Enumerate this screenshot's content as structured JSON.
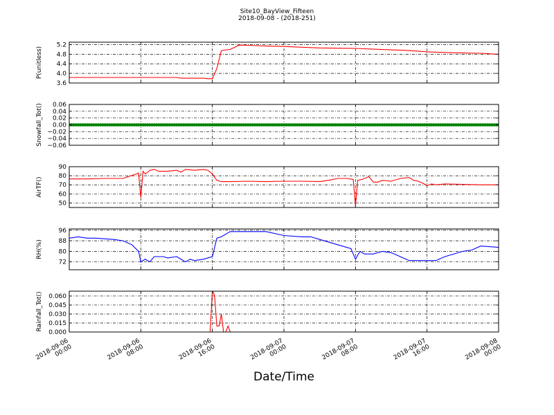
{
  "figure": {
    "title_line1": "Site10_BayView_Fifteen",
    "title_line2": "2018-09-08 - (2018-251)",
    "xlabel": "Date/Time"
  },
  "chart_data": [
    {
      "type": "line",
      "ylabel": "P(unitless)",
      "ylim": [
        3.6,
        5.3
      ],
      "yticks": [
        3.6,
        4.0,
        4.4,
        4.8,
        5.2
      ],
      "ytick_labels": [
        "3.6",
        "4.0",
        "4.4",
        "4.8",
        "5.2"
      ],
      "grid": true,
      "series": [
        {
          "color": "#ff0000",
          "x": [
            "2018-09-06 00:00",
            "2018-09-06 06:00",
            "2018-09-06 12:00",
            "2018-09-06 12:30",
            "2018-09-06 13:00",
            "2018-09-06 15:00",
            "2018-09-06 15:30",
            "2018-09-06 16:00",
            "2018-09-06 16:30",
            "2018-09-06 17:00",
            "2018-09-06 18:00",
            "2018-09-06 19:00",
            "2018-09-06 20:00",
            "2018-09-06 22:00",
            "2018-09-07 00:00",
            "2018-09-07 02:00",
            "2018-09-07 04:00",
            "2018-09-07 06:00",
            "2018-09-07 08:00",
            "2018-09-07 10:00",
            "2018-09-07 12:00",
            "2018-09-07 14:00",
            "2018-09-07 16:00",
            "2018-09-07 18:00",
            "2018-09-07 20:00",
            "2018-09-07 22:00",
            "2018-09-08 00:00"
          ],
          "y": [
            3.83,
            3.83,
            3.83,
            3.8,
            3.8,
            3.8,
            3.78,
            3.78,
            4.2,
            4.95,
            5.0,
            5.18,
            5.17,
            5.14,
            5.12,
            5.09,
            5.06,
            5.05,
            5.04,
            5.01,
            4.98,
            4.95,
            4.9,
            4.87,
            4.85,
            4.84,
            4.8
          ]
        }
      ]
    },
    {
      "type": "scatter",
      "ylabel": "Snowfall_Tot()",
      "ylim": [
        -0.06,
        0.06
      ],
      "yticks": [
        -0.06,
        -0.04,
        -0.02,
        0.0,
        0.02,
        0.04,
        0.06
      ],
      "ytick_labels": [
        "−0.06",
        "−0.04",
        "−0.02",
        "0.00",
        "0.02",
        "0.04",
        "0.06"
      ],
      "grid": true,
      "series": [
        {
          "color": "#008000",
          "x_range": [
            "2018-09-06 00:00",
            "2018-09-08 00:00"
          ],
          "interval_minutes": 15,
          "constant_value": 0.0
        }
      ]
    },
    {
      "type": "line",
      "ylabel": "AirTF()",
      "ylim": [
        45,
        90
      ],
      "yticks": [
        50,
        60,
        70,
        80,
        90
      ],
      "ytick_labels": [
        "50",
        "60",
        "70",
        "80",
        "90"
      ],
      "grid": true,
      "series": [
        {
          "color": "#ff0000",
          "x": [
            "2018-09-06 00:00",
            "2018-09-06 02:00",
            "2018-09-06 04:00",
            "2018-09-06 06:00",
            "2018-09-06 07:30",
            "2018-09-06 07:45",
            "2018-09-06 08:00",
            "2018-09-06 08:15",
            "2018-09-06 08:30",
            "2018-09-06 09:00",
            "2018-09-06 09:30",
            "2018-09-06 10:00",
            "2018-09-06 11:00",
            "2018-09-06 12:00",
            "2018-09-06 12:30",
            "2018-09-06 13:00",
            "2018-09-06 14:00",
            "2018-09-06 15:00",
            "2018-09-06 15:30",
            "2018-09-06 16:00",
            "2018-09-06 16:30",
            "2018-09-06 17:00",
            "2018-09-06 18:00",
            "2018-09-06 20:00",
            "2018-09-06 22:00",
            "2018-09-07 00:00",
            "2018-09-07 02:00",
            "2018-09-07 04:00",
            "2018-09-07 05:00",
            "2018-09-07 06:00",
            "2018-09-07 07:00",
            "2018-09-07 07:45",
            "2018-09-07 08:00",
            "2018-09-07 08:15",
            "2018-09-07 08:45",
            "2018-09-07 09:30",
            "2018-09-07 10:00",
            "2018-09-07 10:30",
            "2018-09-07 11:00",
            "2018-09-07 12:00",
            "2018-09-07 13:00",
            "2018-09-07 14:00",
            "2018-09-07 14:30",
            "2018-09-07 15:00",
            "2018-09-07 15:30",
            "2018-09-07 16:00",
            "2018-09-07 16:30",
            "2018-09-07 17:00",
            "2018-09-07 18:00",
            "2018-09-07 20:00",
            "2018-09-07 22:00",
            "2018-09-08 00:00"
          ],
          "y": [
            76.5,
            76.5,
            77,
            77,
            82,
            83,
            56,
            85,
            82,
            86,
            87,
            85,
            85,
            86,
            84,
            87,
            86,
            87,
            86,
            82,
            75,
            73.5,
            73.5,
            74,
            73.5,
            74,
            74,
            73.5,
            75,
            77,
            77,
            76,
            47,
            75,
            76,
            79,
            73,
            73,
            75,
            74,
            77,
            78,
            75,
            74,
            72,
            69,
            71,
            70,
            71,
            70.5,
            70,
            70
          ]
        }
      ]
    },
    {
      "type": "line",
      "ylabel": "RH(%)",
      "ylim": [
        66,
        97
      ],
      "yticks": [
        72,
        80,
        88,
        96
      ],
      "ytick_labels": [
        "72",
        "80",
        "88",
        "96"
      ],
      "grid": true,
      "series": [
        {
          "color": "#0000ff",
          "x": [
            "2018-09-06 00:00",
            "2018-09-06 01:00",
            "2018-09-06 02:00",
            "2018-09-06 03:00",
            "2018-09-06 04:00",
            "2018-09-06 05:00",
            "2018-09-06 06:00",
            "2018-09-06 07:00",
            "2018-09-06 07:45",
            "2018-09-06 08:00",
            "2018-09-06 08:30",
            "2018-09-06 09:00",
            "2018-09-06 09:30",
            "2018-09-06 10:00",
            "2018-09-06 10:30",
            "2018-09-06 11:00",
            "2018-09-06 12:00",
            "2018-09-06 13:00",
            "2018-09-06 13:30",
            "2018-09-06 14:00",
            "2018-09-06 15:00",
            "2018-09-06 16:00",
            "2018-09-06 16:30",
            "2018-09-06 17:00",
            "2018-09-06 18:00",
            "2018-09-06 20:00",
            "2018-09-06 22:00",
            "2018-09-07 00:00",
            "2018-09-07 02:00",
            "2018-09-07 03:00",
            "2018-09-07 04:00",
            "2018-09-07 06:00",
            "2018-09-07 07:30",
            "2018-09-07 08:00",
            "2018-09-07 08:30",
            "2018-09-07 09:00",
            "2018-09-07 10:00",
            "2018-09-07 11:00",
            "2018-09-07 12:00",
            "2018-09-07 13:00",
            "2018-09-07 14:00",
            "2018-09-07 15:00",
            "2018-09-07 16:00",
            "2018-09-07 17:00",
            "2018-09-07 18:00",
            "2018-09-07 20:00",
            "2018-09-07 21:00",
            "2018-09-07 22:00",
            "2018-09-08 00:00"
          ],
          "y": [
            90,
            91,
            90,
            90,
            89.5,
            89,
            88,
            85,
            80,
            72,
            74,
            72,
            76,
            76,
            76,
            75,
            76,
            72,
            74,
            73,
            74,
            76,
            90,
            91,
            95,
            95,
            95,
            92,
            91,
            91,
            89,
            85,
            82,
            74,
            80,
            78,
            78,
            80,
            79,
            76,
            73,
            73,
            73,
            73,
            76,
            80,
            81,
            84,
            83
          ]
        }
      ]
    },
    {
      "type": "line",
      "ylabel": "Rainfall_Tot()",
      "ylim": [
        0,
        0.068
      ],
      "yticks": [
        0.0,
        0.015,
        0.03,
        0.045,
        0.06
      ],
      "ytick_labels": [
        "0.000",
        "0.015",
        "0.030",
        "0.045",
        "0.060"
      ],
      "grid": true,
      "xtick_labels": [
        [
          "2018-09-06",
          "00:00"
        ],
        [
          "2018-09-06",
          "08:00"
        ],
        [
          "2018-09-06",
          "16:00"
        ],
        [
          "2018-09-07",
          "00:00"
        ],
        [
          "2018-09-07",
          "08:00"
        ],
        [
          "2018-09-07",
          "16:00"
        ],
        [
          "2018-09-08",
          "00:00"
        ]
      ],
      "series": [
        {
          "color": "#ff0000",
          "x": [
            "2018-09-06 00:00",
            "2018-09-06 15:45",
            "2018-09-06 16:00",
            "2018-09-06 16:15",
            "2018-09-06 16:30",
            "2018-09-06 16:45",
            "2018-09-06 17:00",
            "2018-09-06 17:15",
            "2018-09-06 17:30",
            "2018-09-06 17:45",
            "2018-09-06 18:00",
            "2018-09-06 18:15",
            "2018-09-08 00:00"
          ],
          "y": [
            0,
            0,
            0.07,
            0.06,
            0.01,
            0.01,
            0.03,
            0.0,
            0.0,
            0.01,
            0.0,
            0,
            0
          ]
        }
      ]
    }
  ]
}
